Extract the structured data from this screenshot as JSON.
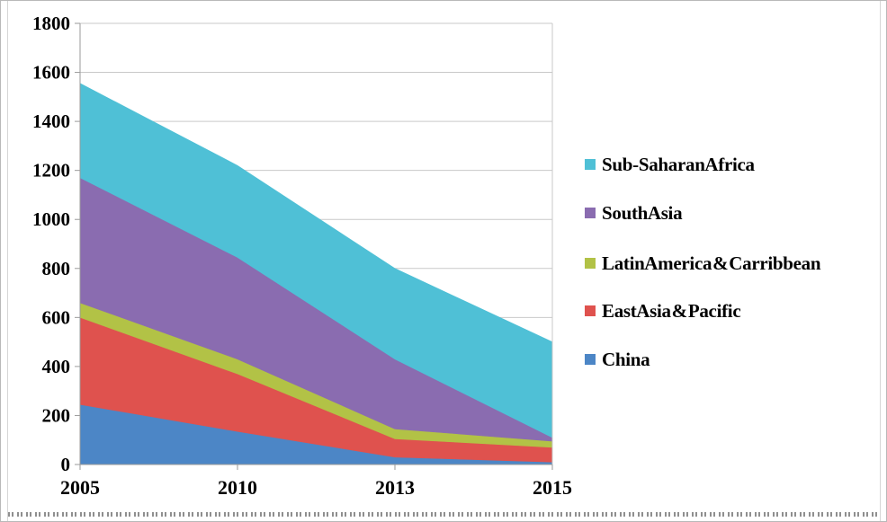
{
  "chart_data": {
    "type": "area",
    "stacked": true,
    "title": "",
    "xlabel": "",
    "ylabel": "",
    "categories": [
      "2005",
      "2010",
      "2013",
      "2015"
    ],
    "series": [
      {
        "name": "China",
        "color": "#4C86C6",
        "values": [
          245,
          135,
          30,
          10
        ]
      },
      {
        "name": "East Asia & Pacific",
        "color": "#DF524E",
        "values": [
          355,
          235,
          75,
          60
        ]
      },
      {
        "name": "Latin America & Carribbean",
        "color": "#B2C246",
        "values": [
          60,
          60,
          40,
          25
        ]
      },
      {
        "name": "South Asia",
        "color": "#8A6CB0",
        "values": [
          510,
          415,
          285,
          15
        ]
      },
      {
        "name": "Sub-Saharan Africa",
        "color": "#4FC0D6",
        "values": [
          385,
          375,
          370,
          390
        ]
      }
    ],
    "cumulative_tops": {
      "2005": [
        245,
        600,
        660,
        1170,
        1555
      ],
      "2010": [
        135,
        370,
        430,
        845,
        1220
      ],
      "2013": [
        30,
        105,
        145,
        430,
        800
      ],
      "2015": [
        10,
        70,
        95,
        110,
        500
      ]
    },
    "ylim": [
      0,
      1800
    ],
    "ytick_step": 200,
    "y_ticks": [
      0,
      200,
      400,
      600,
      800,
      1000,
      1200,
      1400,
      1600,
      1800
    ],
    "grid": "horizontal",
    "legend_position": "right",
    "legend_order_top_to_bottom": [
      "Sub-Saharan Africa",
      "South Asia",
      "Latin America & Carribbean",
      "East Asia & Pacific",
      "China"
    ]
  },
  "colors": {
    "gridline": "#c9c9c9",
    "axis": "#9a9a9a",
    "plot_right_border": "#c9c9c9",
    "text": "#000000",
    "frame": "#b9b9b9",
    "background": "#ffffff"
  }
}
